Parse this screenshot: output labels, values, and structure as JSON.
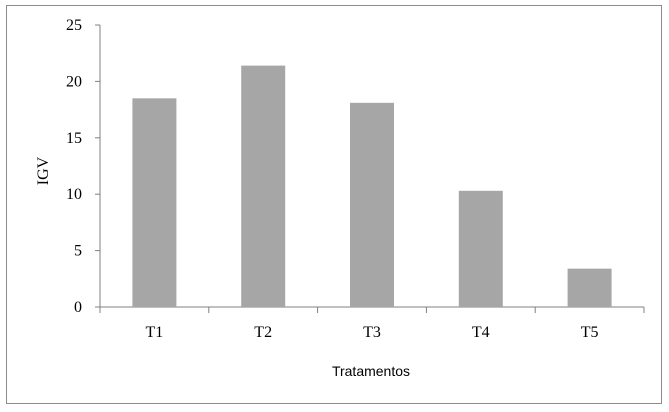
{
  "chart_data": {
    "type": "bar",
    "categories": [
      "T1",
      "T2",
      "T3",
      "T4",
      "T5"
    ],
    "values": [
      18.5,
      21.4,
      18.1,
      10.3,
      3.4
    ],
    "xlabel": "Tratamentos",
    "ylabel": "IGV",
    "ylim": [
      0,
      25
    ],
    "yticks": [
      "0",
      "5",
      "10",
      "15",
      "20",
      "25"
    ],
    "bar_color": "#a6a6a6",
    "grid": false,
    "legend": "none"
  }
}
